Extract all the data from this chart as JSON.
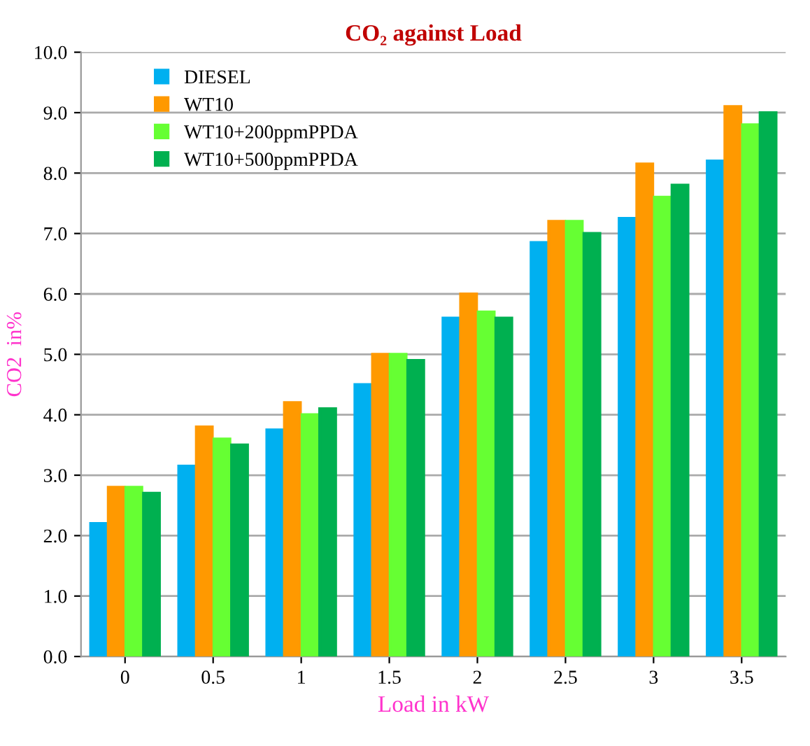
{
  "chart_data": {
    "type": "bar",
    "title": "CO₂ against Load",
    "xlabel": "Load in kW",
    "ylabel": "CO2  in%",
    "categories": [
      "0",
      "0.5",
      "1",
      "1.5",
      "2",
      "2.5",
      "3",
      "3.5"
    ],
    "series": [
      {
        "name": "DIESEL",
        "color": "#00b0f0",
        "values": [
          2.2,
          3.15,
          3.75,
          4.5,
          5.6,
          6.85,
          7.25,
          8.2
        ]
      },
      {
        "name": "WT10",
        "color": "#ff9900",
        "values": [
          2.8,
          3.8,
          4.2,
          5.0,
          6.0,
          7.2,
          8.15,
          9.1
        ]
      },
      {
        "name": "WT10+200ppmPPDA",
        "color": "#66ff33",
        "values": [
          2.8,
          3.6,
          4.0,
          5.0,
          5.7,
          7.2,
          7.6,
          8.8
        ]
      },
      {
        "name": "WT10+500ppmPPDA",
        "color": "#00b050",
        "values": [
          2.7,
          3.5,
          4.1,
          4.9,
          5.6,
          7.0,
          7.8,
          9.0
        ]
      }
    ],
    "ylim": [
      0,
      10
    ],
    "yticks": [
      {
        "value": 0,
        "label": "0.0"
      },
      {
        "value": 1,
        "label": "1.0"
      },
      {
        "value": 2,
        "label": "2.0"
      },
      {
        "value": 3,
        "label": "3.0"
      },
      {
        "value": 4,
        "label": "4.0"
      },
      {
        "value": 5,
        "label": "5.0"
      },
      {
        "value": 6,
        "label": "6.0"
      },
      {
        "value": 7,
        "label": "7.0"
      },
      {
        "value": 8,
        "label": "8.0"
      },
      {
        "value": 9,
        "label": "9.0"
      },
      {
        "value": 10,
        "label": "10.0"
      }
    ],
    "grid": "y",
    "legend": "top left"
  }
}
